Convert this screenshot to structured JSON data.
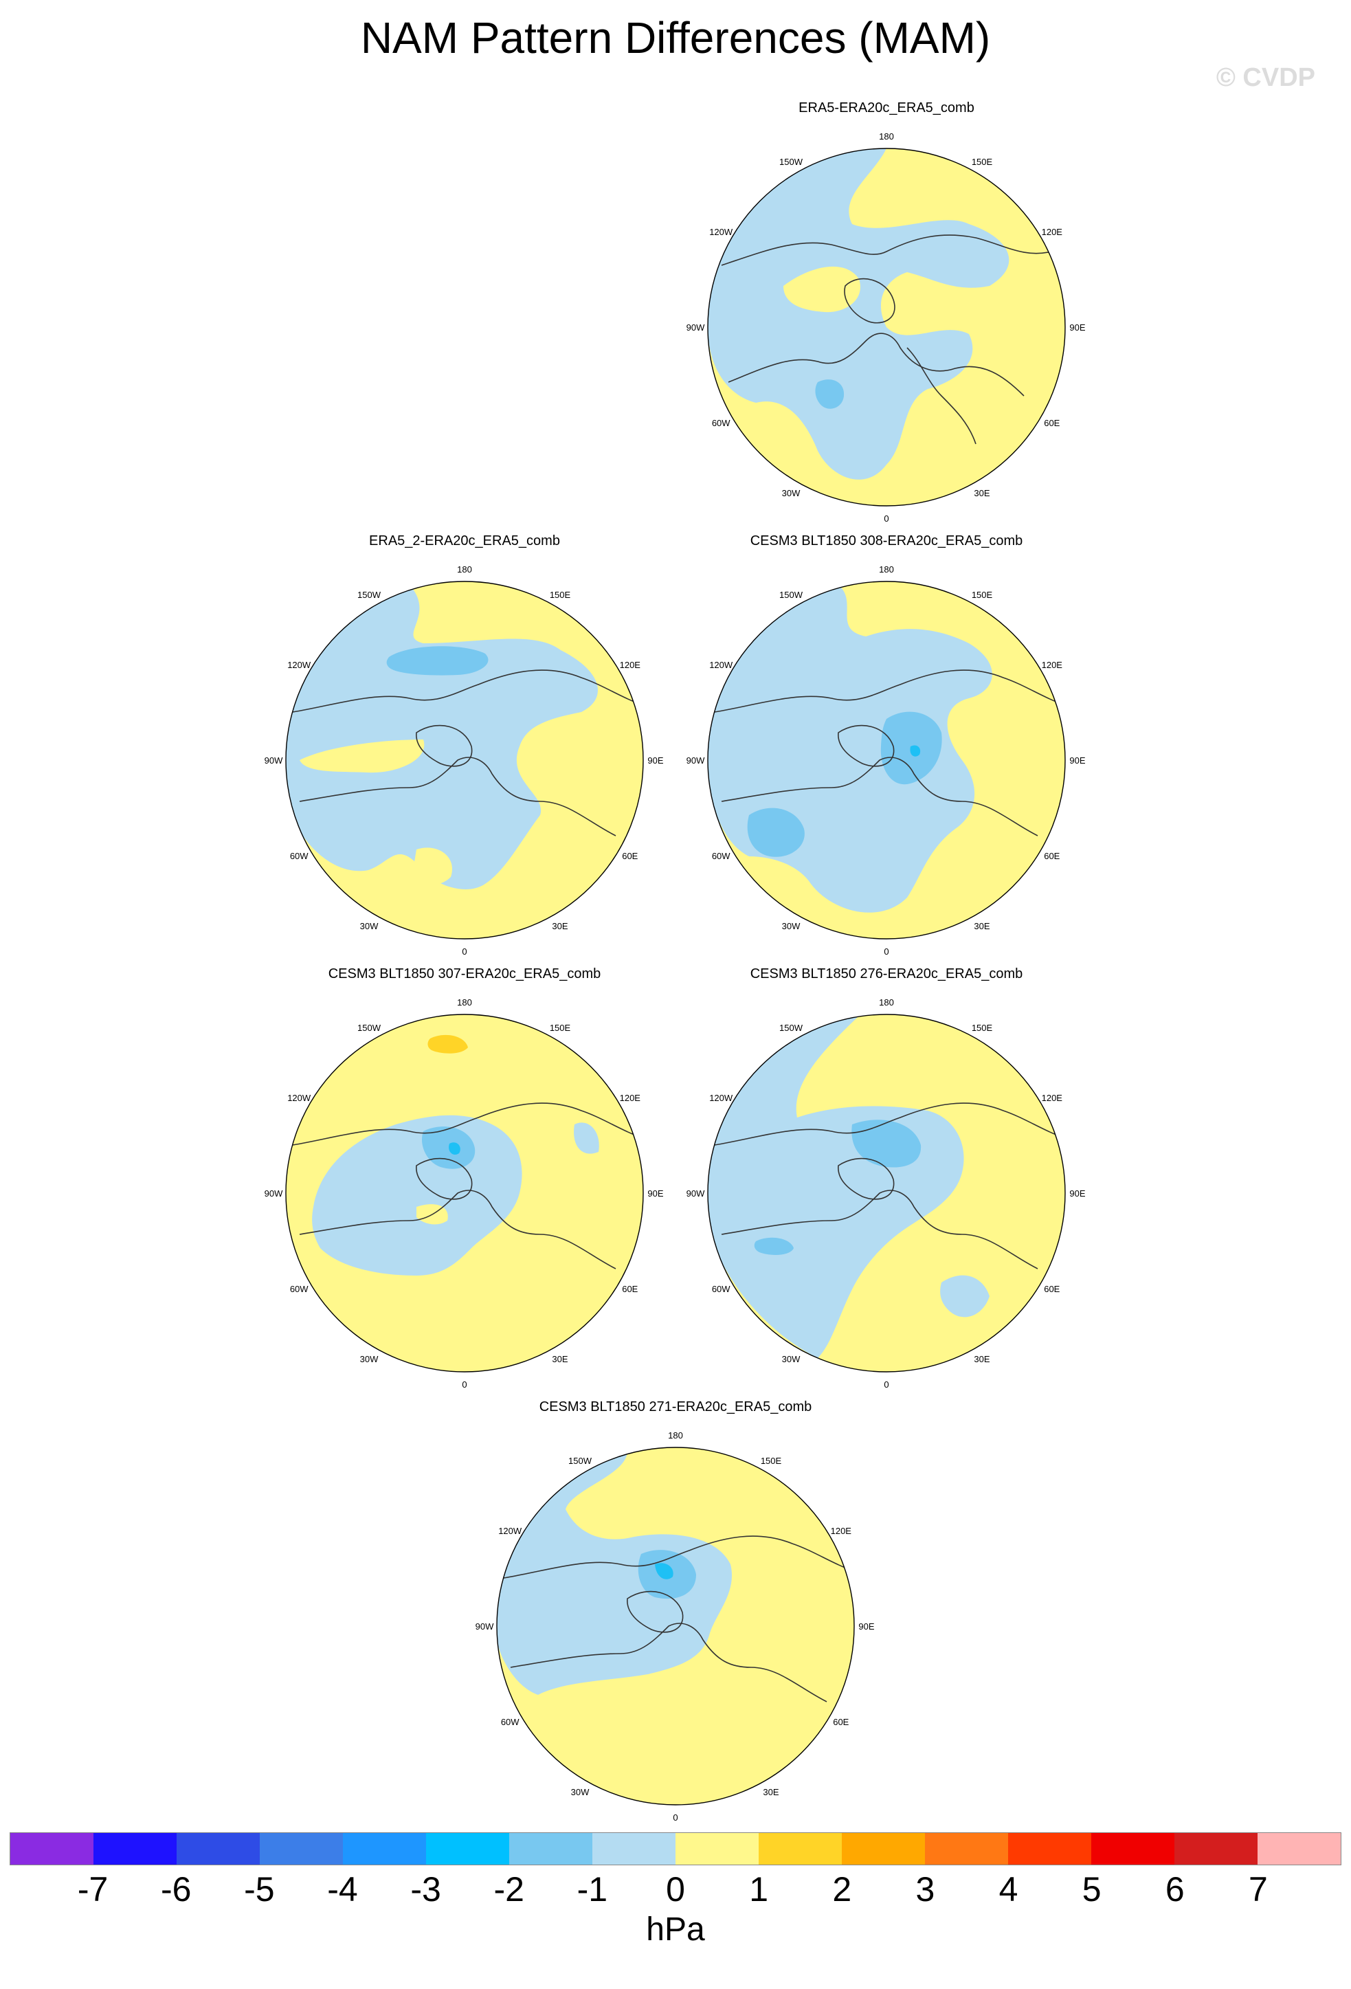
{
  "title": "NAM Pattern Differences (MAM)",
  "credit": "© CVDP",
  "units": "hPa",
  "colors": {
    "neg1": "#b4dcf2",
    "neg2": "#78c8f0",
    "neg3": "#1ec0f5",
    "pos1": "#fff88c",
    "pos2": "#ffd427",
    "coast": "#333333"
  },
  "lon_labels": [
    "180",
    "150E",
    "120E",
    "90E",
    "60E",
    "30E",
    "0",
    "30W",
    "60W",
    "90W",
    "120W",
    "150W"
  ],
  "panels": [
    {
      "id": "p1",
      "title": "ERA5-ERA20c_ERA5_comb"
    },
    {
      "id": "p2",
      "title": "ERA5_2-ERA20c_ERA5_comb"
    },
    {
      "id": "p3",
      "title": "CESM3 BLT1850 308-ERA20c_ERA5_comb"
    },
    {
      "id": "p4",
      "title": "CESM3 BLT1850 307-ERA20c_ERA5_comb"
    },
    {
      "id": "p5",
      "title": "CESM3 BLT1850 276-ERA20c_ERA5_comb"
    },
    {
      "id": "p6",
      "title": "CESM3 BLT1850 271-ERA20c_ERA5_comb"
    }
  ],
  "colorbar": {
    "colors": [
      "#8a2be2",
      "#1e12ff",
      "#2e4ce6",
      "#3c7ee8",
      "#1e96ff",
      "#00c0ff",
      "#78c8f0",
      "#b4dcf2",
      "#fff88c",
      "#ffd427",
      "#ffa800",
      "#ff7814",
      "#ff3a00",
      "#f00000",
      "#d41e1e",
      "#ffb4b4"
    ],
    "labels": [
      "-7",
      "-6",
      "-5",
      "-4",
      "-3",
      "-2",
      "-1",
      "0",
      "1",
      "2",
      "3",
      "4",
      "5",
      "6",
      "7"
    ]
  }
}
